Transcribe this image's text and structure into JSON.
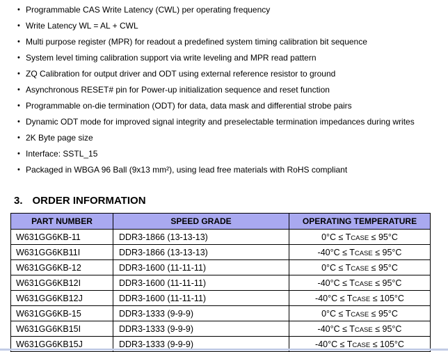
{
  "features": {
    "items": [
      "Programmable CAS Write Latency (CWL) per operating frequency",
      "Write Latency WL = AL + CWL",
      "Multi purpose register (MPR) for readout a predefined system timing calibration bit sequence",
      "System level timing calibration support via write leveling and MPR read pattern",
      "ZQ Calibration for output driver and ODT using external reference resistor to ground",
      "Asynchronous RESET# pin for Power-up initialization sequence and reset function",
      "Programmable on-die termination (ODT) for data, data mask and differential strobe pairs",
      "Dynamic ODT mode for improved signal integrity and preselectable termination impedances during writes",
      "2K Byte page size",
      "Interface: SSTL_15",
      "Packaged in WBGA 96 Ball (9x13 mm²), using lead free materials with RoHS compliant"
    ]
  },
  "section_heading": {
    "number": "3.",
    "title": "ORDER INFORMATION"
  },
  "order_table": {
    "columns": [
      "PART NUMBER",
      "SPEED GRADE",
      "OPERATING TEMPERATURE"
    ],
    "rows": [
      {
        "part": "W631GG6KB-11",
        "speed": "DDR3-1866 (13-13-13)",
        "temp_pre": "0°C ≤ T",
        "temp_sub": "CASE",
        "temp_post": " ≤ 95°C"
      },
      {
        "part": "W631GG6KB11I",
        "speed": "DDR3-1866 (13-13-13)",
        "temp_pre": "-40°C ≤ T",
        "temp_sub": "CASE",
        "temp_post": " ≤ 95°C"
      },
      {
        "part": "W631GG6KB-12",
        "speed": "DDR3-1600 (11-11-11)",
        "temp_pre": "0°C ≤ T",
        "temp_sub": "CASE",
        "temp_post": " ≤ 95°C"
      },
      {
        "part": "W631GG6KB12I",
        "speed": "DDR3-1600 (11-11-11)",
        "temp_pre": "-40°C ≤ T",
        "temp_sub": "CASE",
        "temp_post": " ≤ 95°C"
      },
      {
        "part": "W631GG6KB12J",
        "speed": "DDR3-1600 (11-11-11)",
        "temp_pre": "-40°C ≤ T",
        "temp_sub": "CASE",
        "temp_post": " ≤ 105°C"
      },
      {
        "part": "W631GG6KB-15",
        "speed": "DDR3-1333 (9-9-9)",
        "temp_pre": "0°C ≤ T",
        "temp_sub": "CASE",
        "temp_post": " ≤ 95°C"
      },
      {
        "part": "W631GG6KB15I",
        "speed": "DDR3-1333 (9-9-9)",
        "temp_pre": "-40°C ≤ T",
        "temp_sub": "CASE",
        "temp_post": " ≤ 95°C"
      },
      {
        "part": "W631GG6KB15J",
        "speed": "DDR3-1333 (9-9-9)",
        "temp_pre": "-40°C ≤ T",
        "temp_sub": "CASE",
        "temp_post": " ≤ 105°C"
      }
    ]
  },
  "colors": {
    "table_header_bg": "#a9a9f0",
    "table_border": "#000000",
    "text": "#000000",
    "bottom_rule": "#c2cce6",
    "page_bg": "#ffffff"
  }
}
